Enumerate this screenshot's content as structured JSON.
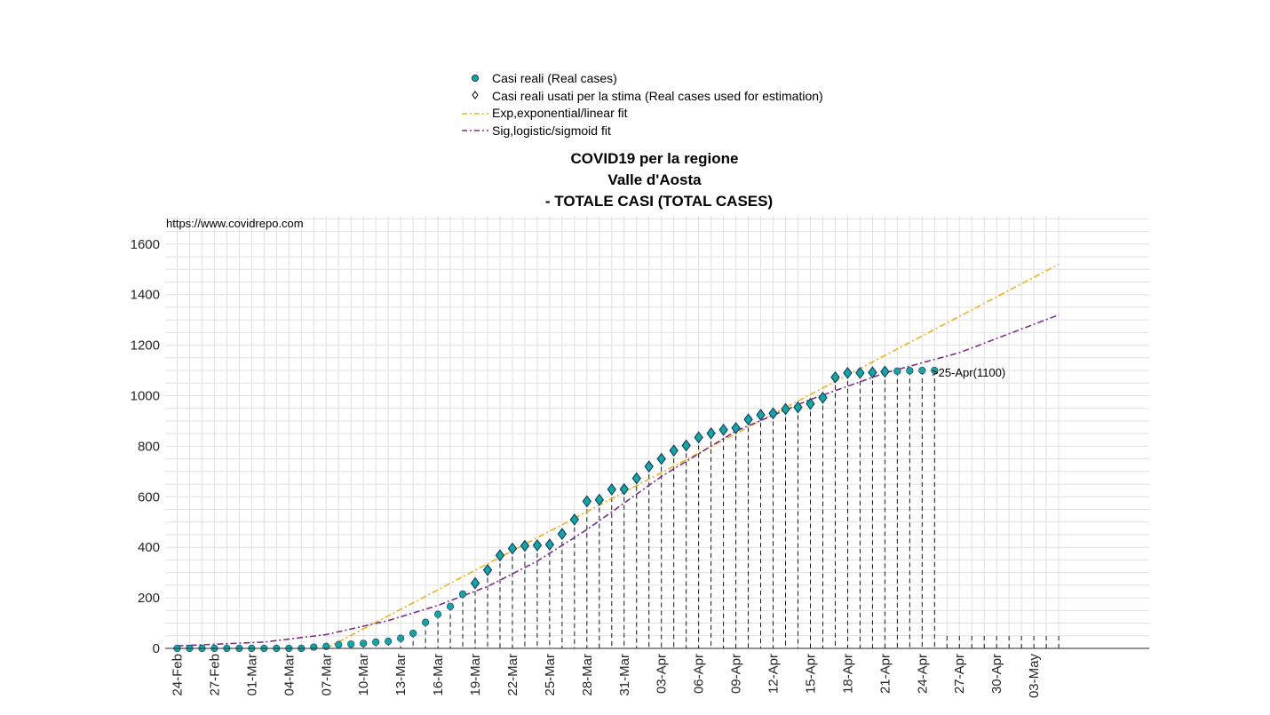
{
  "figure": {
    "title_lines": [
      "COVID19 per la regione",
      "Valle d'Aosta",
      "- TOTALE CASI (TOTAL CASES)"
    ],
    "watermark": "https://www.covidrepo.com",
    "annotation": ">25-Apr(1100)"
  },
  "legend": {
    "items": [
      {
        "label": "Casi reali (Real cases)",
        "marker": "circle"
      },
      {
        "label": "Casi reali usati per la stima (Real cases used for estimation)",
        "marker": "diamond"
      },
      {
        "label": "Exp,exponential/linear fit",
        "marker": "dashdot-line",
        "color": "#EDB120"
      },
      {
        "label": "Sig,logistic/sigmoid fit",
        "marker": "dashdot-line",
        "color": "#7E2F8E"
      }
    ],
    "placement": "top-center, above title"
  },
  "colors": {
    "real_cases": "#1AA3A3",
    "marker_edge": "#0B3F5E",
    "exp_fit": "#EDB120",
    "sig_fit": "#7E2F8E",
    "grid": "#E0E0E0",
    "stem": "#000000"
  },
  "chart_data": {
    "type": "scatter",
    "title": "COVID19 per la regione Valle d'Aosta - TOTALE CASI (TOTAL CASES)",
    "xlabel": "",
    "ylabel": "",
    "ylim": [
      0,
      1700
    ],
    "yticks": [
      0,
      200,
      400,
      600,
      800,
      1000,
      1200,
      1400,
      1600
    ],
    "x_start": "24-Feb",
    "x_end": "05-May",
    "xtick_labels": [
      "24-Feb",
      "27-Feb",
      "01-Mar",
      "04-Mar",
      "07-Mar",
      "10-Mar",
      "13-Mar",
      "16-Mar",
      "19-Mar",
      "22-Mar",
      "25-Mar",
      "28-Mar",
      "31-Mar",
      "03-Apr",
      "06-Apr",
      "09-Apr",
      "12-Apr",
      "15-Apr",
      "18-Apr",
      "21-Apr",
      "24-Apr",
      "27-Apr",
      "30-Apr",
      "03-May"
    ],
    "grid": true,
    "dates": [
      "24-Feb",
      "25-Feb",
      "26-Feb",
      "27-Feb",
      "28-Feb",
      "29-Feb",
      "01-Mar",
      "02-Mar",
      "03-Mar",
      "04-Mar",
      "05-Mar",
      "06-Mar",
      "07-Mar",
      "08-Mar",
      "09-Mar",
      "10-Mar",
      "11-Mar",
      "12-Mar",
      "13-Mar",
      "14-Mar",
      "15-Mar",
      "16-Mar",
      "17-Mar",
      "18-Mar",
      "19-Mar",
      "20-Mar",
      "21-Mar",
      "22-Mar",
      "23-Mar",
      "24-Mar",
      "25-Mar",
      "26-Mar",
      "27-Mar",
      "28-Mar",
      "29-Mar",
      "30-Mar",
      "31-Mar",
      "01-Apr",
      "02-Apr",
      "03-Apr",
      "04-Apr",
      "05-Apr",
      "06-Apr",
      "07-Apr",
      "08-Apr",
      "09-Apr",
      "10-Apr",
      "11-Apr",
      "12-Apr",
      "13-Apr",
      "14-Apr",
      "15-Apr",
      "16-Apr",
      "17-Apr",
      "18-Apr",
      "19-Apr",
      "20-Apr",
      "21-Apr",
      "22-Apr",
      "23-Apr",
      "24-Apr",
      "25-Apr"
    ],
    "series": [
      {
        "name": "Casi reali (Real cases)",
        "values": [
          0,
          0,
          0,
          0,
          0,
          0,
          0,
          0,
          0,
          0,
          0,
          5,
          8,
          15,
          17,
          20,
          25,
          28,
          40,
          60,
          103,
          135,
          166,
          215,
          258,
          310,
          368,
          395,
          406,
          408,
          411,
          453,
          510,
          582,
          588,
          629,
          630,
          673,
          720,
          750,
          783,
          803,
          835,
          851,
          865,
          872,
          906,
          924,
          930,
          947,
          954,
          968,
          992,
          1073,
          1090,
          1090,
          1092,
          1095,
          1097,
          1099,
          1100,
          1100
        ]
      },
      {
        "name": "Casi reali usati per la stima (Real cases used for estimation)",
        "start_date": "19-Mar",
        "end_date": "21-Apr"
      },
      {
        "name": "Exp,exponential/linear fit",
        "x_dates": [
          "07-Mar",
          "05-May"
        ],
        "values": [
          0,
          1520
        ]
      },
      {
        "name": "Sig,logistic/sigmoid fit",
        "x_dates": [
          "24-Feb",
          "02-Mar",
          "07-Mar",
          "12-Mar",
          "16-Mar",
          "20-Mar",
          "24-Mar",
          "28-Mar",
          "03-Apr",
          "09-Apr",
          "15-Apr",
          "21-Apr",
          "27-Apr",
          "05-May"
        ],
        "values": [
          10,
          25,
          55,
          110,
          170,
          245,
          345,
          470,
          680,
          860,
          985,
          1090,
          1170,
          1320
        ]
      }
    ]
  }
}
